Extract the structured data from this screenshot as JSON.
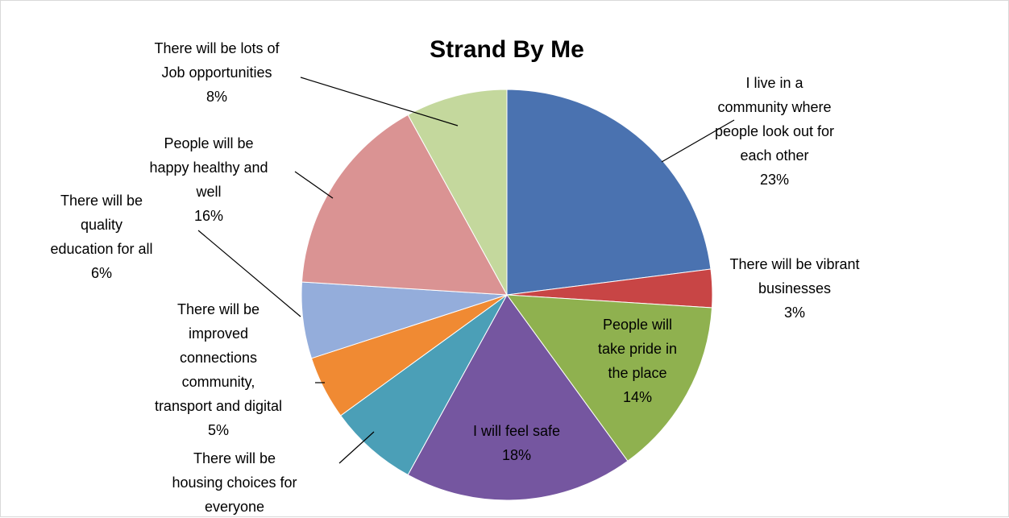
{
  "chart_data": {
    "type": "pie",
    "title": "Strand By Me",
    "start_angle_deg": 0,
    "direction": "clockwise",
    "slices": [
      {
        "label": [
          "I live in a",
          "community where",
          "people look out for",
          "each other"
        ],
        "percent_label": "23%",
        "value": 23,
        "color": "#4a72b0"
      },
      {
        "label": [
          "There will be vibrant",
          "businesses"
        ],
        "percent_label": "3%",
        "value": 3,
        "color": "#c84545"
      },
      {
        "label": [
          "People will",
          "take pride in",
          "the place"
        ],
        "percent_label": "14%",
        "value": 14,
        "color": "#8fb14f"
      },
      {
        "label": [
          "I will feel safe"
        ],
        "percent_label": "18%",
        "value": 18,
        "color": "#7556a0"
      },
      {
        "label": [
          "There will be",
          "housing choices for",
          "everyone"
        ],
        "percent_label": "",
        "value": 7,
        "color": "#4b9fb7"
      },
      {
        "label": [
          "There will be",
          "improved",
          "connections",
          "community,",
          "transport and digital"
        ],
        "percent_label": "5%",
        "value": 5,
        "color": "#f08a33"
      },
      {
        "label": [
          "There will be",
          "quality",
          "education for all"
        ],
        "percent_label": "6%",
        "value": 6,
        "color": "#94addb"
      },
      {
        "label": [
          "People will be",
          "happy healthy and",
          "well"
        ],
        "percent_label": "16%",
        "value": 16,
        "color": "#da9393"
      },
      {
        "label": [
          "There will be lots of",
          "Job opportunities"
        ],
        "percent_label": "8%",
        "value": 8,
        "color": "#c4d89d"
      }
    ]
  }
}
